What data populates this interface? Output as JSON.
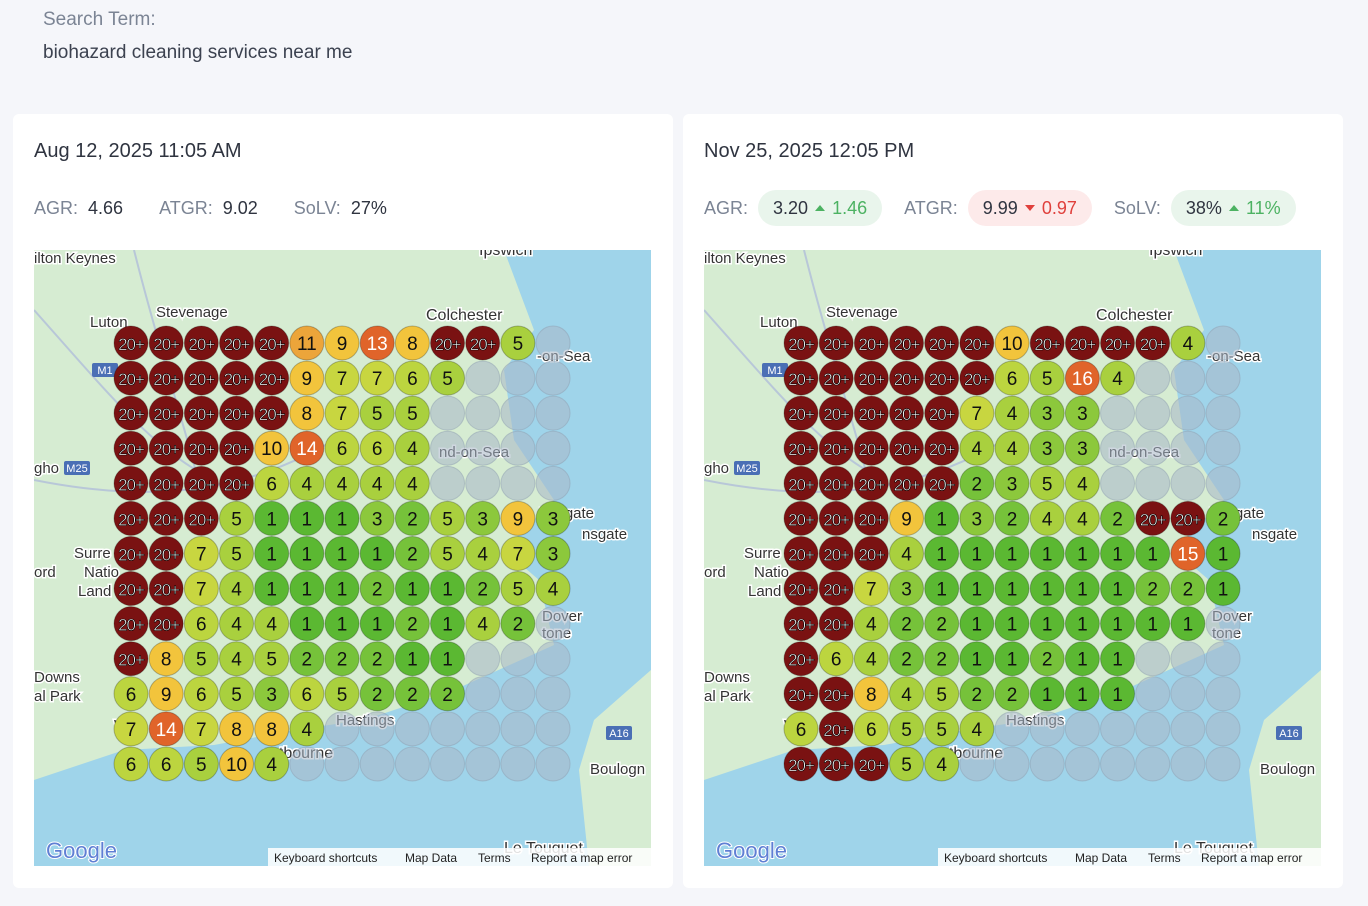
{
  "search": {
    "label": "Search Term:",
    "term": "biohazard cleaning services near me"
  },
  "metric_labels": [
    "AGR:",
    "ATGR:",
    "SoLV:"
  ],
  "panels": [
    {
      "date": "Aug 12, 2025 11:05 AM",
      "metrics": [
        {
          "value": "4.66"
        },
        {
          "value": "9.02"
        },
        {
          "value": "27%"
        }
      ],
      "grid": [
        [
          "20+",
          "20+",
          "20+",
          "20+",
          "20+",
          11,
          9,
          13,
          8,
          "20+",
          "20+",
          5,
          null
        ],
        [
          "20+",
          "20+",
          "20+",
          "20+",
          "20+",
          9,
          7,
          7,
          6,
          5,
          null,
          null,
          null
        ],
        [
          "20+",
          "20+",
          "20+",
          "20+",
          "20+",
          8,
          7,
          5,
          5,
          null,
          null,
          null,
          null
        ],
        [
          "20+",
          "20+",
          "20+",
          "20+",
          10,
          14,
          6,
          6,
          4,
          null,
          null,
          null,
          null
        ],
        [
          "20+",
          "20+",
          "20+",
          "20+",
          6,
          4,
          4,
          4,
          4,
          null,
          null,
          null,
          null
        ],
        [
          "20+",
          "20+",
          "20+",
          5,
          1,
          1,
          1,
          3,
          2,
          5,
          3,
          9,
          3
        ],
        [
          "20+",
          "20+",
          7,
          5,
          1,
          1,
          1,
          1,
          2,
          5,
          4,
          7,
          3
        ],
        [
          "20+",
          "20+",
          7,
          4,
          1,
          1,
          1,
          2,
          1,
          1,
          2,
          5,
          4
        ],
        [
          "20+",
          "20+",
          6,
          4,
          4,
          1,
          1,
          1,
          2,
          1,
          4,
          2,
          null
        ],
        [
          "20+",
          8,
          5,
          4,
          5,
          2,
          2,
          2,
          1,
          1,
          null,
          null,
          null
        ],
        [
          6,
          9,
          6,
          5,
          3,
          6,
          5,
          2,
          2,
          2,
          null,
          null,
          null
        ],
        [
          7,
          14,
          7,
          8,
          8,
          4,
          null,
          null,
          null,
          null,
          null,
          null,
          null
        ],
        [
          6,
          6,
          5,
          10,
          4,
          null,
          null,
          null,
          null,
          null,
          null,
          null,
          null
        ]
      ]
    },
    {
      "date": "Nov 25, 2025 12:05 PM",
      "metrics": [
        {
          "value": "3.20",
          "change": "1.46",
          "direction": "up"
        },
        {
          "value": "9.99",
          "change": "0.97",
          "direction": "down"
        },
        {
          "value": "38%",
          "change": "11%",
          "direction": "up"
        }
      ],
      "grid": [
        [
          "20+",
          "20+",
          "20+",
          "20+",
          "20+",
          "20+",
          10,
          "20+",
          "20+",
          "20+",
          "20+",
          4,
          null
        ],
        [
          "20+",
          "20+",
          "20+",
          "20+",
          "20+",
          "20+",
          6,
          5,
          16,
          4,
          null,
          null,
          null
        ],
        [
          "20+",
          "20+",
          "20+",
          "20+",
          "20+",
          7,
          4,
          3,
          3,
          null,
          null,
          null,
          null
        ],
        [
          "20+",
          "20+",
          "20+",
          "20+",
          "20+",
          4,
          4,
          3,
          3,
          null,
          null,
          null,
          null
        ],
        [
          "20+",
          "20+",
          "20+",
          "20+",
          "20+",
          2,
          3,
          5,
          4,
          null,
          null,
          null,
          null
        ],
        [
          "20+",
          "20+",
          "20+",
          9,
          1,
          3,
          2,
          4,
          4,
          2,
          "20+",
          "20+",
          2
        ],
        [
          "20+",
          "20+",
          "20+",
          4,
          1,
          1,
          1,
          1,
          1,
          1,
          1,
          15,
          1
        ],
        [
          "20+",
          "20+",
          7,
          3,
          1,
          1,
          1,
          1,
          1,
          1,
          2,
          2,
          1
        ],
        [
          "20+",
          "20+",
          4,
          2,
          2,
          1,
          1,
          1,
          1,
          1,
          1,
          1,
          null
        ],
        [
          "20+",
          6,
          4,
          2,
          2,
          1,
          1,
          2,
          1,
          1,
          null,
          null,
          null
        ],
        [
          "20+",
          "20+",
          8,
          4,
          5,
          2,
          2,
          1,
          1,
          1,
          null,
          null,
          null
        ],
        [
          6,
          "20+",
          6,
          5,
          5,
          4,
          null,
          null,
          null,
          null,
          null,
          null,
          null
        ],
        [
          "20+",
          "20+",
          "20+",
          5,
          4,
          null,
          null,
          null,
          null,
          null,
          null,
          null,
          null
        ]
      ]
    }
  ],
  "map": {
    "labels": [
      "ilton Keynes",
      "Luton",
      "Stevenage",
      "Colchester",
      "-on-Sea",
      "M1",
      "M25",
      "nd-on-Sea",
      "Margate",
      "nsgate",
      "Surre",
      "Natio",
      "Land",
      "Downs",
      "al Park",
      "Hastings",
      "astbourne",
      "Boulogn",
      "Le Touquet",
      "A16",
      "ord",
      "gho",
      "W",
      "Dover",
      "tone",
      "Ipswich"
    ],
    "attribution": [
      "Keyboard shortcuts",
      "Map Data",
      "Terms",
      "Report a map error"
    ],
    "logo": "Google"
  }
}
